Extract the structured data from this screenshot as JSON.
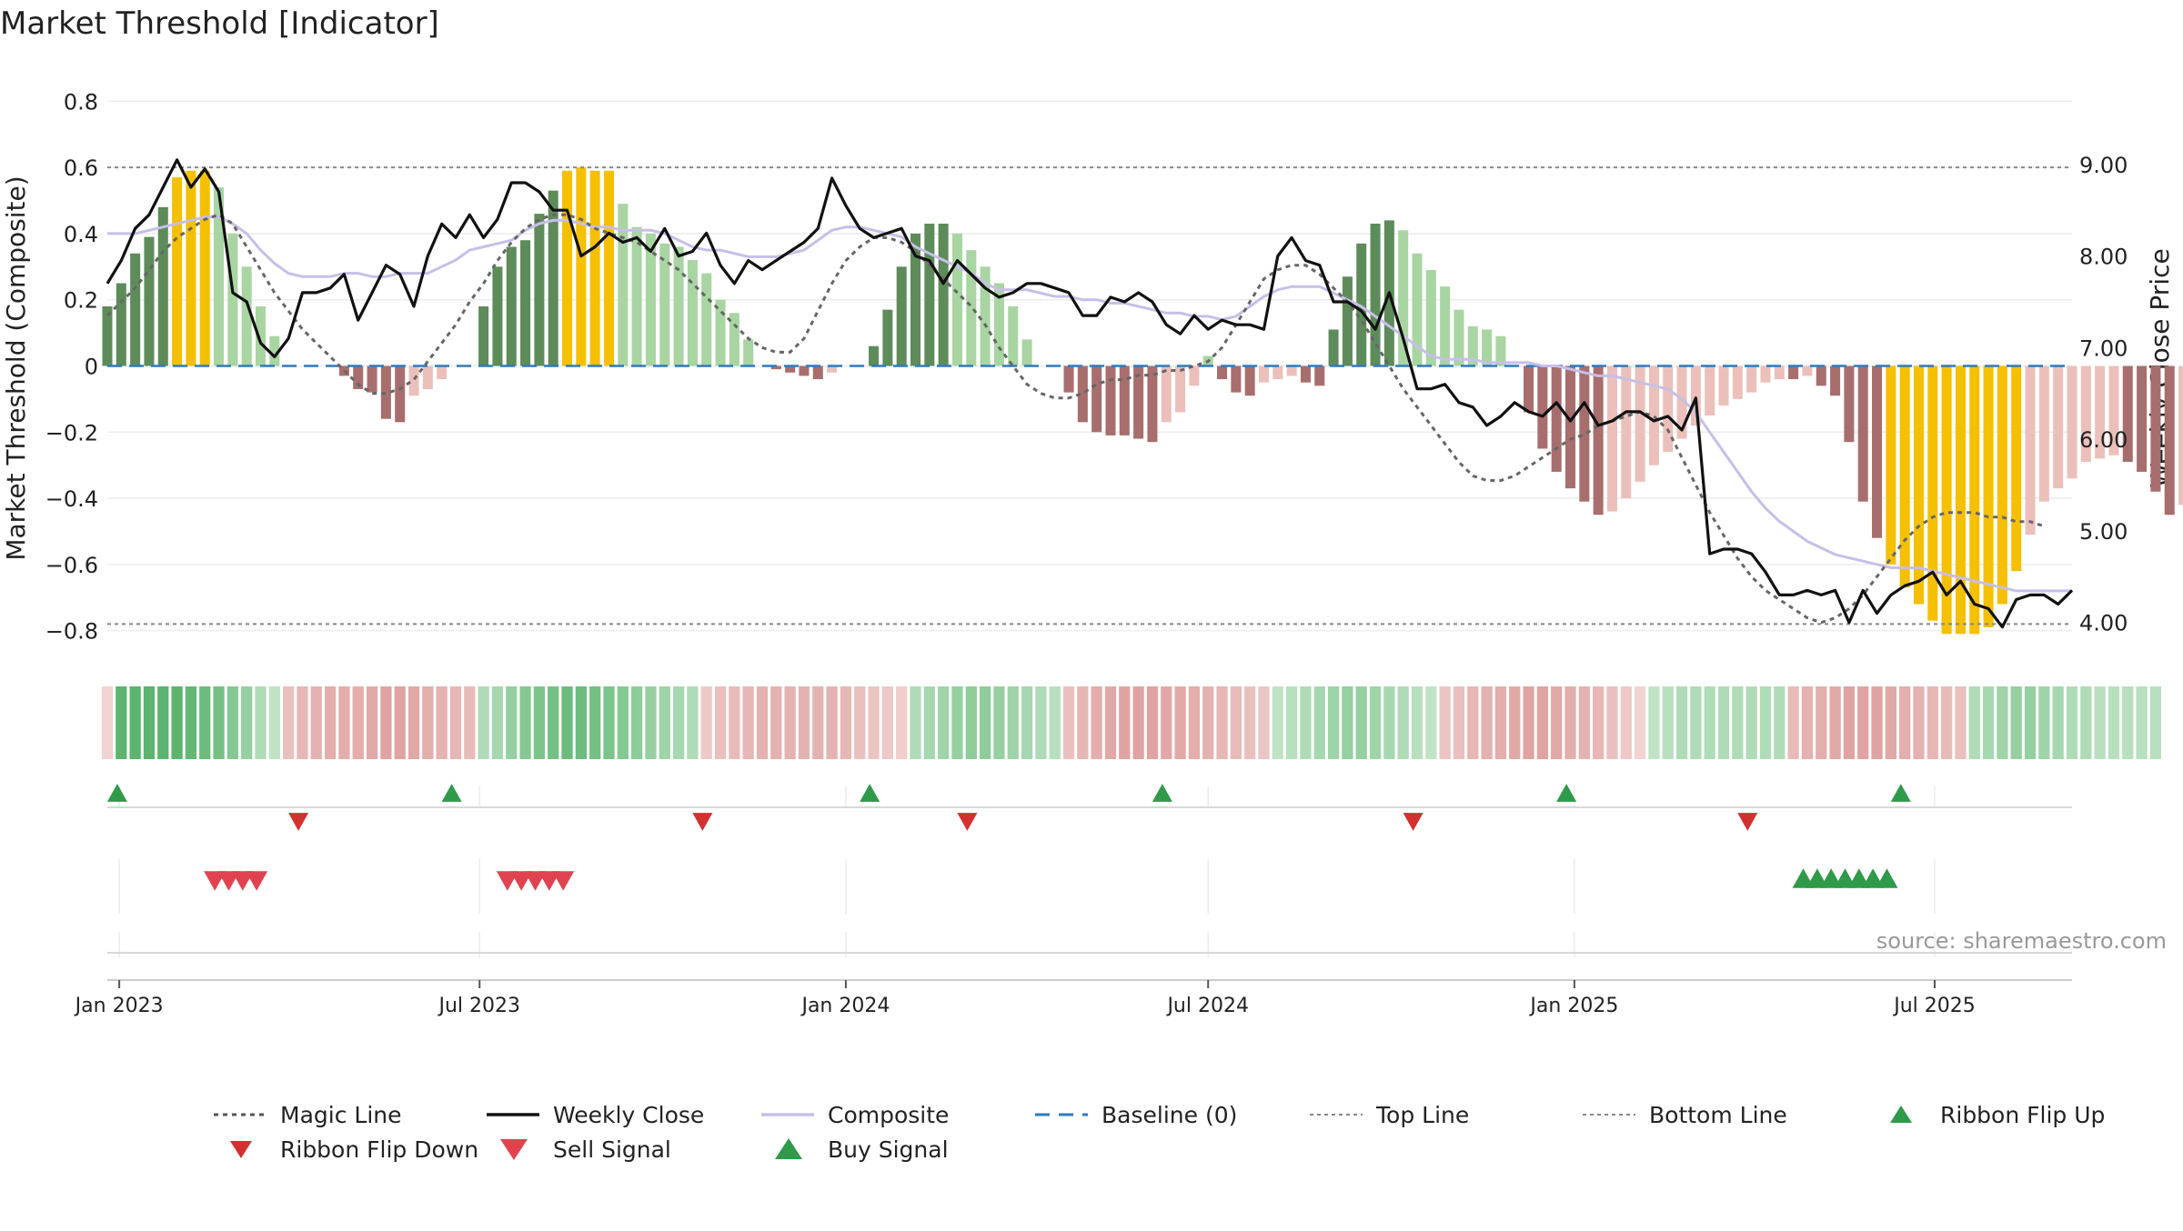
{
  "chart_data": {
    "type": "composite-indicator",
    "title": "Market Threshold [Indicator]",
    "ylabel_left": "Market Threshold (Composite)",
    "ylabel_right": "Weekly Close Price",
    "source": "source: sharemaestro.com",
    "x_range": [
      "2022-12-26",
      "2025-09-08"
    ],
    "ylim_left": [
      -0.9,
      0.9
    ],
    "ylim_right": [
      3.55,
      10.05
    ],
    "y_ticks_left": [
      0.8,
      0.6,
      0.4,
      0.2,
      0,
      -0.2,
      -0.4,
      -0.6,
      -0.8
    ],
    "y_tick_labels_left": [
      "0.8",
      "0.6",
      "0.4",
      "0.2",
      "0",
      "−0.2",
      "−0.4",
      "−0.6",
      "−0.8"
    ],
    "y_ticks_right": [
      9,
      8,
      7,
      6,
      5,
      4
    ],
    "y_tick_labels_right": [
      "9.00",
      "8.00",
      "7.00",
      "6.00",
      "5.00",
      "4.00"
    ],
    "x_ticks": [
      {
        "date": "2023-01-01",
        "label": "Jan 2023"
      },
      {
        "date": "2023-07-01",
        "label": "Jul 2023"
      },
      {
        "date": "2024-01-01",
        "label": "Jan 2024"
      },
      {
        "date": "2024-07-01",
        "label": "Jul 2024"
      },
      {
        "date": "2025-01-01",
        "label": "Jan 2025"
      },
      {
        "date": "2025-07-01",
        "label": "Jul 2025"
      }
    ],
    "grid": true,
    "legend_position": "bottom",
    "top_line": 0.6,
    "bottom_line": -0.78,
    "baseline": 0,
    "weekly_close": [
      7.7,
      7.95,
      8.3,
      8.45,
      8.75,
      9.05,
      8.75,
      8.95,
      8.7,
      7.6,
      7.5,
      7.05,
      6.9,
      7.1,
      7.6,
      7.6,
      7.65,
      7.8,
      7.3,
      7.6,
      7.9,
      7.8,
      7.45,
      8.0,
      8.35,
      8.2,
      8.45,
      8.2,
      8.4,
      8.8,
      8.8,
      8.7,
      8.5,
      8.5,
      8.0,
      8.1,
      8.25,
      8.15,
      8.2,
      8.05,
      8.3,
      8.0,
      8.05,
      8.25,
      7.9,
      7.7,
      7.95,
      7.85,
      7.95,
      8.05,
      8.15,
      8.3,
      8.85,
      8.55,
      8.3,
      8.2,
      8.25,
      8.3,
      8.0,
      7.95,
      7.7,
      7.95,
      7.8,
      7.65,
      7.55,
      7.6,
      7.7,
      7.7,
      7.65,
      7.6,
      7.35,
      7.35,
      7.55,
      7.5,
      7.6,
      7.5,
      7.25,
      7.15,
      7.35,
      7.2,
      7.3,
      7.25,
      7.25,
      7.2,
      8.0,
      8.2,
      7.95,
      7.9,
      7.5,
      7.5,
      7.4,
      7.2,
      7.6,
      7.1,
      6.55,
      6.55,
      6.6,
      6.4,
      6.35,
      6.15,
      6.25,
      6.4,
      6.3,
      6.25,
      6.4,
      6.2,
      6.4,
      6.15,
      6.2,
      6.3,
      6.3,
      6.2,
      6.25,
      6.1,
      6.45,
      4.75,
      4.8,
      4.8,
      4.75,
      4.55,
      4.3,
      4.3,
      4.35,
      4.3,
      4.35,
      4.0,
      4.35,
      4.1,
      4.3,
      4.4,
      4.45,
      4.55,
      4.3,
      4.45,
      4.2,
      4.15,
      3.95,
      4.25,
      4.3,
      4.3,
      4.2,
      4.35
    ],
    "magic_line": [
      7.35,
      7.5,
      7.65,
      7.85,
      8.05,
      8.2,
      8.3,
      8.4,
      8.45,
      8.35,
      8.1,
      7.85,
      7.6,
      7.4,
      7.2,
      7.05,
      6.9,
      6.75,
      6.6,
      6.5,
      6.5,
      6.55,
      6.65,
      6.85,
      7.05,
      7.25,
      7.5,
      7.7,
      7.95,
      8.15,
      8.3,
      8.4,
      8.45,
      8.45,
      8.4,
      8.3,
      8.25,
      8.2,
      8.15,
      8.05,
      7.95,
      7.85,
      7.7,
      7.55,
      7.4,
      7.25,
      7.1,
      7.0,
      6.95,
      6.95,
      7.1,
      7.4,
      7.7,
      7.95,
      8.1,
      8.2,
      8.2,
      8.15,
      8.05,
      7.9,
      7.75,
      7.6,
      7.45,
      7.25,
      7.0,
      6.8,
      6.6,
      6.5,
      6.45,
      6.45,
      6.5,
      6.6,
      6.65,
      6.65,
      6.7,
      6.7,
      6.75,
      6.75,
      6.8,
      6.85,
      7.0,
      7.25,
      7.5,
      7.75,
      7.85,
      7.9,
      7.9,
      7.8,
      7.65,
      7.5,
      7.3,
      7.05,
      6.8,
      6.55,
      6.35,
      6.15,
      5.95,
      5.75,
      5.6,
      5.55,
      5.55,
      5.6,
      5.7,
      5.8,
      5.9,
      6.0,
      6.05,
      6.15,
      6.2,
      6.25,
      6.3,
      6.25,
      6.1,
      5.8,
      5.5,
      5.2,
      4.95,
      4.7,
      4.5,
      4.35,
      4.25,
      4.15,
      4.05,
      4.0,
      4.05,
      4.15,
      4.3,
      4.5,
      4.7,
      4.9,
      5.05,
      5.15,
      5.2,
      5.2,
      5.2,
      5.15,
      5.15,
      5.1,
      5.1,
      5.05
    ],
    "composite": [
      0.4,
      0.4,
      0.4,
      0.41,
      0.42,
      0.43,
      0.44,
      0.45,
      0.45,
      0.43,
      0.4,
      0.35,
      0.31,
      0.28,
      0.27,
      0.27,
      0.27,
      0.28,
      0.28,
      0.27,
      0.27,
      0.28,
      0.28,
      0.28,
      0.3,
      0.32,
      0.35,
      0.36,
      0.37,
      0.38,
      0.41,
      0.43,
      0.44,
      0.44,
      0.43,
      0.42,
      0.42,
      0.41,
      0.41,
      0.41,
      0.4,
      0.38,
      0.36,
      0.35,
      0.35,
      0.34,
      0.33,
      0.33,
      0.33,
      0.34,
      0.35,
      0.38,
      0.41,
      0.42,
      0.42,
      0.41,
      0.4,
      0.39,
      0.36,
      0.34,
      0.32,
      0.3,
      0.28,
      0.25,
      0.23,
      0.23,
      0.23,
      0.22,
      0.21,
      0.21,
      0.2,
      0.2,
      0.19,
      0.19,
      0.18,
      0.17,
      0.16,
      0.16,
      0.15,
      0.15,
      0.14,
      0.15,
      0.18,
      0.21,
      0.23,
      0.24,
      0.24,
      0.24,
      0.22,
      0.2,
      0.18,
      0.15,
      0.12,
      0.09,
      0.06,
      0.03,
      0.02,
      0.02,
      0.02,
      0.01,
      0.01,
      0.01,
      0.01,
      0.0,
      0.0,
      -0.01,
      -0.02,
      -0.03,
      -0.03,
      -0.04,
      -0.05,
      -0.06,
      -0.07,
      -0.1,
      -0.14,
      -0.2,
      -0.26,
      -0.32,
      -0.38,
      -0.43,
      -0.47,
      -0.5,
      -0.53,
      -0.55,
      -0.57,
      -0.58,
      -0.59,
      -0.6,
      -0.61,
      -0.61,
      -0.61,
      -0.62,
      -0.63,
      -0.64,
      -0.65,
      -0.66,
      -0.67,
      -0.68,
      -0.68,
      -0.68,
      -0.68,
      -0.68
    ],
    "threshold_bars": [
      0.18,
      0.25,
      0.34,
      0.39,
      0.48,
      0.57,
      0.59,
      0.59,
      0.54,
      0.4,
      0.3,
      0.18,
      0.09,
      0.0,
      0.0,
      0.0,
      0.0,
      -0.03,
      -0.07,
      -0.08,
      -0.16,
      -0.17,
      -0.09,
      -0.07,
      -0.04,
      0.0,
      0.0,
      0.18,
      0.3,
      0.36,
      0.38,
      0.46,
      0.53,
      0.59,
      0.6,
      0.59,
      0.59,
      0.49,
      0.42,
      0.4,
      0.37,
      0.36,
      0.32,
      0.28,
      0.2,
      0.16,
      0.08,
      0.0,
      -0.01,
      -0.02,
      -0.03,
      -0.04,
      -0.02,
      0.0,
      0.0,
      0.06,
      0.17,
      0.3,
      0.4,
      0.43,
      0.43,
      0.4,
      0.35,
      0.3,
      0.25,
      0.18,
      0.08,
      0.0,
      0.0,
      -0.08,
      -0.17,
      -0.2,
      -0.21,
      -0.21,
      -0.22,
      -0.23,
      -0.17,
      -0.14,
      -0.06,
      0.03,
      -0.04,
      -0.08,
      -0.09,
      -0.05,
      -0.04,
      -0.03,
      -0.05,
      -0.06,
      0.11,
      0.27,
      0.37,
      0.43,
      0.44,
      0.41,
      0.34,
      0.29,
      0.24,
      0.17,
      0.12,
      0.11,
      0.09,
      0.0,
      -0.14,
      -0.25,
      -0.32,
      -0.37,
      -0.41,
      -0.45,
      -0.44,
      -0.4,
      -0.35,
      -0.3,
      -0.26,
      -0.22,
      -0.18,
      -0.15,
      -0.12,
      -0.1,
      -0.08,
      -0.05,
      -0.04,
      -0.04,
      -0.03,
      -0.06,
      -0.09,
      -0.23,
      -0.41,
      -0.52,
      -0.6,
      -0.67,
      -0.72,
      -0.77,
      -0.81,
      -0.81,
      -0.81,
      -0.79,
      -0.72,
      -0.62,
      -0.51,
      -0.41,
      -0.37,
      -0.34,
      -0.29,
      -0.28,
      -0.27,
      -0.29,
      -0.32,
      -0.38,
      -0.45,
      -0.42,
      -0.41,
      -0.42,
      -0.39
    ],
    "ribbon": [
      -0.1,
      0.8,
      0.8,
      0.8,
      0.8,
      0.8,
      0.75,
      0.7,
      0.65,
      0.55,
      0.45,
      0.3,
      0.2,
      -0.3,
      -0.4,
      -0.45,
      -0.5,
      -0.5,
      -0.5,
      -0.55,
      -0.6,
      -0.6,
      -0.55,
      -0.5,
      -0.45,
      -0.4,
      -0.35,
      0.3,
      0.35,
      0.45,
      0.55,
      0.6,
      0.65,
      0.7,
      0.7,
      0.65,
      0.6,
      0.55,
      0.5,
      0.45,
      0.4,
      0.35,
      0.3,
      -0.2,
      -0.3,
      -0.35,
      -0.4,
      -0.45,
      -0.45,
      -0.45,
      -0.45,
      -0.45,
      -0.45,
      -0.4,
      -0.3,
      -0.25,
      -0.2,
      -0.15,
      0.3,
      0.35,
      0.4,
      0.45,
      0.5,
      0.5,
      0.45,
      0.4,
      0.35,
      0.3,
      0.25,
      -0.3,
      -0.4,
      -0.5,
      -0.55,
      -0.6,
      -0.6,
      -0.6,
      -0.55,
      -0.55,
      -0.5,
      -0.45,
      -0.4,
      -0.35,
      -0.3,
      -0.25,
      0.2,
      0.25,
      0.3,
      0.35,
      0.4,
      0.45,
      0.45,
      0.4,
      0.35,
      0.3,
      0.25,
      0.2,
      -0.25,
      -0.3,
      -0.4,
      -0.45,
      -0.5,
      -0.55,
      -0.6,
      -0.6,
      -0.55,
      -0.5,
      -0.45,
      -0.4,
      -0.3,
      -0.2,
      -0.1,
      0.2,
      0.25,
      0.3,
      0.3,
      0.3,
      0.3,
      0.3,
      0.3,
      0.3,
      0.3,
      -0.35,
      -0.45,
      -0.5,
      -0.55,
      -0.6,
      -0.6,
      -0.6,
      -0.55,
      -0.5,
      -0.45,
      -0.4,
      -0.35,
      -0.3,
      0.3,
      0.35,
      0.4,
      0.45,
      0.45,
      0.4,
      0.35,
      0.3,
      0.3,
      0.25,
      0.25,
      0.25,
      0.25,
      0.25
    ],
    "ribbon_flip_up": [
      "2022-12-31",
      "2023-06-17",
      "2024-01-13",
      "2024-06-08",
      "2024-12-28",
      "2025-06-14"
    ],
    "ribbon_flip_down": [
      "2023-04-01",
      "2023-10-21",
      "2024-03-02",
      "2024-10-12",
      "2025-03-29"
    ],
    "sell_signals": [
      "2023-02-18",
      "2023-02-25",
      "2023-03-04",
      "2023-03-11",
      "2023-07-15",
      "2023-07-22",
      "2023-07-29",
      "2023-08-05",
      "2023-08-12"
    ],
    "buy_signals": [
      "2025-04-26",
      "2025-05-03",
      "2025-05-10",
      "2025-05-17",
      "2025-05-24",
      "2025-05-31",
      "2025-06-07"
    ],
    "colors": {
      "bar_pos_strong": "#5d8c5a",
      "bar_pos_weak": "#a8d5a2",
      "bar_neg_strong": "#a86e6e",
      "bar_neg_weak": "#ebc0bb",
      "bar_extreme": "#f5c000",
      "close": "#111111",
      "magic": "#666666",
      "composite": "#c7bfe8",
      "baseline": "#2d7bbf",
      "guide": "#888888",
      "flip_up": "#2e9a4a",
      "flip_down": "#d33030",
      "sell": "#e0434f",
      "buy": "#2e9a4a"
    },
    "legend": [
      {
        "label": "Magic Line",
        "kind": "dotted",
        "color": "#555555"
      },
      {
        "label": "Weekly Close",
        "kind": "line",
        "color": "#111111"
      },
      {
        "label": "Composite",
        "kind": "line",
        "color": "#c7bfe8"
      },
      {
        "label": "Baseline (0)",
        "kind": "dashed",
        "color": "#2d7bbf"
      },
      {
        "label": "Top Line",
        "kind": "dotted-thin",
        "color": "#888888"
      },
      {
        "label": "Bottom Line",
        "kind": "dotted-thin",
        "color": "#888888"
      },
      {
        "label": "Ribbon Flip Up",
        "kind": "tri-up",
        "color": "#2e9a4a"
      },
      {
        "label": "Ribbon Flip Down",
        "kind": "tri-down",
        "color": "#d33030"
      },
      {
        "label": "Sell Signal",
        "kind": "tri-down-big",
        "color": "#e0434f"
      },
      {
        "label": "Buy Signal",
        "kind": "tri-up-big",
        "color": "#2e9a4a"
      }
    ]
  }
}
